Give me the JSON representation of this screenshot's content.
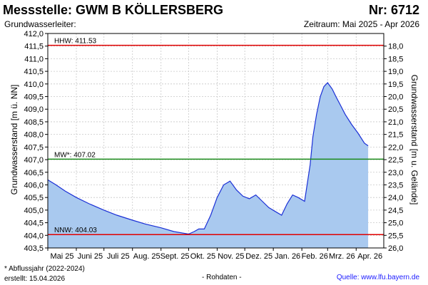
{
  "header": {
    "title": "Messstelle: GWM B KÖLLERSBERG",
    "nr": "Nr: 6712",
    "aquifer": "Grundwasserleiter:",
    "period": "Zeitraum: Mai 2025 - Apr 2026"
  },
  "footer": {
    "footnote": "* Abflussjahr (2022-2024)",
    "created": "erstellt:  15.04.2026",
    "rawdata": "- Rohdaten -",
    "source": "Quelle:  www.lfu.bayern.de"
  },
  "colors": {
    "fill": "#a9c9ef",
    "line": "#1a2fd6",
    "hhw": "#e00000",
    "mw": "#1a8a1a",
    "nnw": "#e00000",
    "grid": "#c8c8c8"
  },
  "chart_data": {
    "type": "area",
    "ylabel_left": "Grundwasserstand [m ü. NN]",
    "ylabel_right": "Grundwasserstand [m u. Gelände]",
    "ylim_left": [
      403.5,
      412.0
    ],
    "ylim_right_inverted": [
      26.0,
      17.5
    ],
    "yticks_left": [
      "412,0",
      "411,5",
      "411,0",
      "410,5",
      "410,0",
      "409,5",
      "409,0",
      "408,5",
      "408,0",
      "407,5",
      "407,0",
      "406,5",
      "406,0",
      "405,5",
      "405,0",
      "404,5",
      "404,0",
      "403,5"
    ],
    "yticks_right": [
      "18,0",
      "18,5",
      "19,0",
      "19,5",
      "20,0",
      "20,5",
      "21,0",
      "21,5",
      "22,0",
      "22,5",
      "23,0",
      "23,5",
      "24,0",
      "24,5",
      "25,0",
      "25,5",
      "26,0"
    ],
    "xticks": [
      "Mai 25",
      "Juni 25",
      "Juli 25",
      "Aug. 25",
      "Sept. 25",
      "Okt. 25",
      "Nov. 25",
      "Dez. 25",
      "Jan. 26",
      "Feb. 26",
      "Mrz. 26",
      "Apr. 26"
    ],
    "x_range": [
      "2025-05-01",
      "2026-05-01"
    ],
    "grid": true,
    "reference_lines": [
      {
        "label": "HHW: 411.53",
        "value": 411.53
      },
      {
        "label": "MW*: 407.02",
        "value": 407.02
      },
      {
        "label": "NNW: 404.03",
        "value": 404.03
      }
    ],
    "series": [
      {
        "x": [
          "2025-05-01",
          "2025-05-10",
          "2025-05-20",
          "2025-06-01",
          "2025-06-15",
          "2025-07-01",
          "2025-07-15",
          "2025-08-01",
          "2025-08-15",
          "2025-09-01",
          "2025-09-15",
          "2025-10-01",
          "2025-10-07",
          "2025-10-12",
          "2025-10-18",
          "2025-10-25",
          "2025-11-01",
          "2025-11-08",
          "2025-11-15",
          "2025-11-22",
          "2025-11-29",
          "2025-12-06",
          "2025-12-13",
          "2025-12-20",
          "2025-12-27",
          "2026-01-03",
          "2026-01-10",
          "2026-01-16",
          "2026-01-22",
          "2026-01-28",
          "2026-02-04",
          "2026-02-10",
          "2026-02-13",
          "2026-02-17",
          "2026-02-21",
          "2026-02-25",
          "2026-03-01",
          "2026-03-06",
          "2026-03-10",
          "2026-03-15",
          "2026-03-20",
          "2026-03-27",
          "2026-04-03",
          "2026-04-10",
          "2026-04-14"
        ],
        "values": [
          406.2,
          406.0,
          405.75,
          405.5,
          405.25,
          405.0,
          404.8,
          404.6,
          404.45,
          404.3,
          404.15,
          404.05,
          404.15,
          404.25,
          404.25,
          404.8,
          405.5,
          406.0,
          406.15,
          405.8,
          405.55,
          405.45,
          405.6,
          405.35,
          405.1,
          404.95,
          404.8,
          405.25,
          405.6,
          405.5,
          405.35,
          406.8,
          407.9,
          408.8,
          409.5,
          409.9,
          410.05,
          409.8,
          409.5,
          409.15,
          408.8,
          408.4,
          408.05,
          407.65,
          407.55
        ]
      }
    ]
  }
}
